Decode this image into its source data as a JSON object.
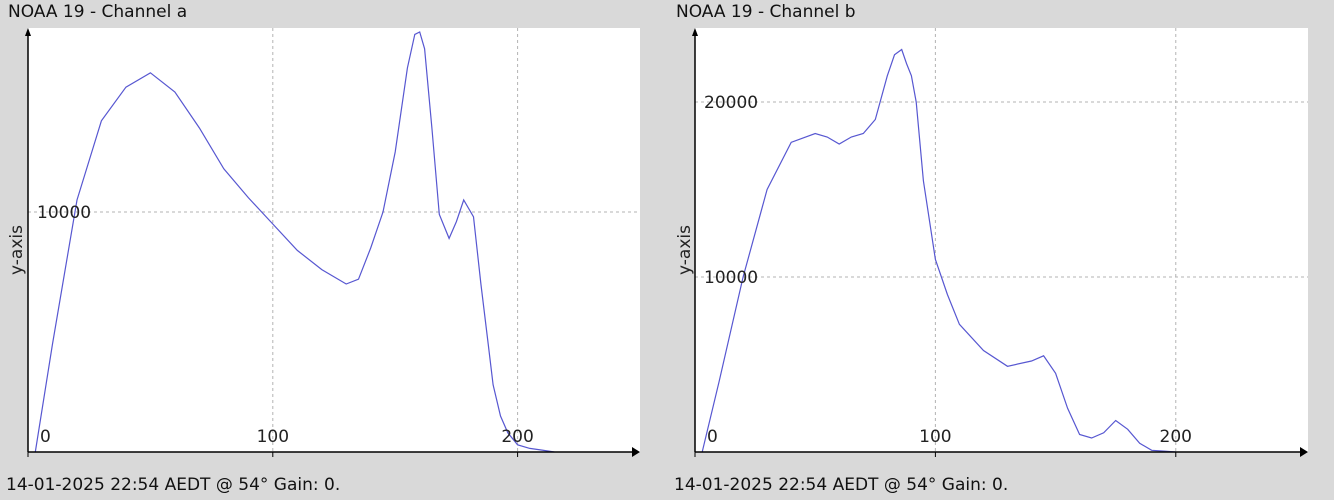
{
  "charts": [
    {
      "title": "NOAA 19 - Channel a",
      "footer": "14-01-2025 22:54 AEDT @ 54° Gain: 0.",
      "chart_data": {
        "type": "line",
        "title": "NOAA 19 - Channel a",
        "xlabel": "",
        "ylabel": "y-axis",
        "xlim": [
          0,
          250
        ],
        "ylim": [
          0,
          17500
        ],
        "xticks": [
          0,
          100,
          200
        ],
        "yticks": [
          10000
        ],
        "x_tick_labels": [
          "0",
          "100",
          "200"
        ],
        "y_tick_labels": [
          "10000"
        ],
        "grid": true,
        "series": [
          {
            "color": "#5757d1",
            "x": [
              3,
              10,
              20,
              30,
              40,
              50,
              60,
              70,
              80,
              90,
              100,
              110,
              120,
              130,
              135,
              140,
              145,
              150,
              155,
              158,
              160,
              162,
              165,
              168,
              172,
              175,
              178,
              182,
              185,
              188,
              190,
              193,
              196,
              200,
              205,
              210,
              215
            ],
            "y": [
              0,
              4500,
              10500,
              13800,
              15200,
              15800,
              15000,
              13500,
              11800,
              10600,
              9500,
              8400,
              7600,
              7000,
              7200,
              8500,
              10000,
              12500,
              16000,
              17400,
              17500,
              16800,
              13500,
              9900,
              8900,
              9600,
              10500,
              9800,
              7000,
              4500,
              2800,
              1500,
              800,
              300,
              150,
              80,
              0
            ]
          }
        ]
      }
    },
    {
      "title": "NOAA 19 - Channel b",
      "footer": "14-01-2025 22:54 AEDT @ 54° Gain: 0.",
      "chart_data": {
        "type": "line",
        "title": "NOAA 19 - Channel b",
        "xlabel": "",
        "ylabel": "y-axis",
        "xlim": [
          0,
          255
        ],
        "ylim": [
          0,
          24000
        ],
        "xticks": [
          0,
          100,
          200
        ],
        "yticks": [
          10000,
          20000
        ],
        "x_tick_labels": [
          "0",
          "100",
          "200"
        ],
        "y_tick_labels": [
          "10000",
          "20000"
        ],
        "grid": true,
        "series": [
          {
            "color": "#5757d1",
            "x": [
              3,
              10,
              20,
              30,
              40,
              50,
              55,
              60,
              65,
              70,
              75,
              80,
              83,
              86,
              88,
              90,
              92,
              95,
              100,
              105,
              110,
              120,
              130,
              140,
              145,
              150,
              155,
              160,
              165,
              170,
              175,
              180,
              185,
              190,
              195,
              200
            ],
            "y": [
              0,
              4000,
              10000,
              15000,
              17700,
              18200,
              18000,
              17600,
              18000,
              18200,
              19000,
              21500,
              22700,
              23000,
              22200,
              21500,
              20000,
              15500,
              11000,
              9000,
              7300,
              5800,
              4900,
              5200,
              5500,
              4500,
              2500,
              1000,
              800,
              1100,
              1800,
              1300,
              500,
              100,
              50,
              0
            ]
          }
        ]
      }
    }
  ]
}
